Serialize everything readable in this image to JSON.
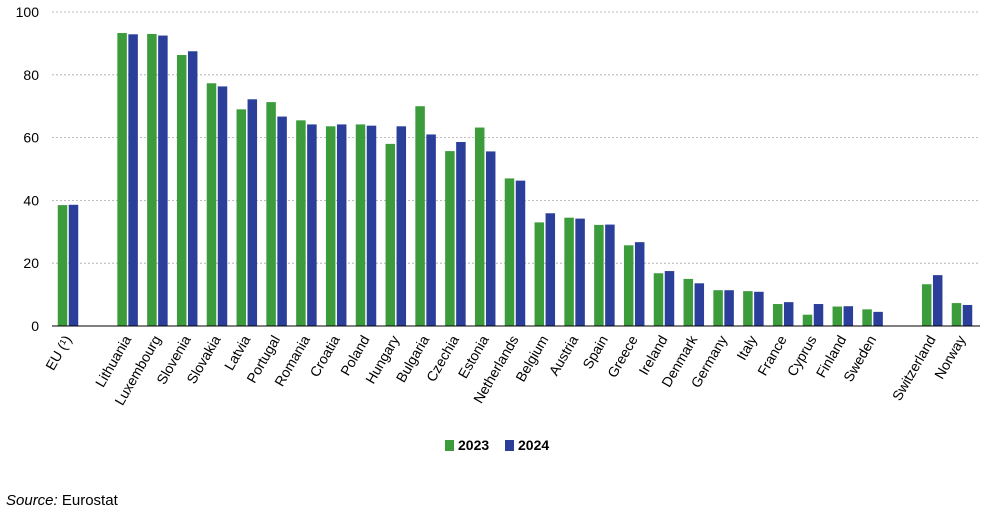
{
  "chart_data": {
    "type": "bar",
    "categories": [
      "EU (¹)",
      "Lithuania",
      "Luxembourg",
      "Slovenia",
      "Slovakia",
      "Latvia",
      "Portugal",
      "Romania",
      "Croatia",
      "Poland",
      "Hungary",
      "Bulgaria",
      "Czechia",
      "Estonia",
      "Netherlands",
      "Belgium",
      "Austria",
      "Spain",
      "Greece",
      "Ireland",
      "Denmark",
      "Germany",
      "Italy",
      "France",
      "Cyprus",
      "Finland",
      "Sweden",
      "Switzerland",
      "Norway"
    ],
    "series": [
      {
        "name": "2023",
        "color": "#3c9c3c",
        "values": [
          38.5,
          93.3,
          93.0,
          86.3,
          77.3,
          69.0,
          71.3,
          65.5,
          63.6,
          64.2,
          58.0,
          70.0,
          55.7,
          63.2,
          47.0,
          33.0,
          34.5,
          32.2,
          25.7,
          16.8,
          15.0,
          11.4,
          11.1,
          7.0,
          3.6,
          6.2,
          5.3,
          13.3,
          7.3
        ]
      },
      {
        "name": "2024",
        "color": "#2b3f9a",
        "values": [
          38.6,
          92.9,
          92.5,
          87.5,
          76.3,
          72.2,
          66.7,
          64.2,
          64.2,
          63.8,
          63.6,
          61.0,
          58.6,
          55.6,
          46.3,
          35.9,
          34.2,
          32.3,
          26.7,
          17.5,
          13.6,
          11.4,
          10.9,
          7.6,
          7.0,
          6.3,
          4.5,
          16.2,
          6.7
        ]
      }
    ],
    "ylim": [
      0,
      100
    ],
    "yticks": [
      0,
      20,
      40,
      60,
      80,
      100
    ],
    "grid": true,
    "legend": "bottom-center"
  },
  "source_label": "Source:",
  "source_value": " Eurostat"
}
